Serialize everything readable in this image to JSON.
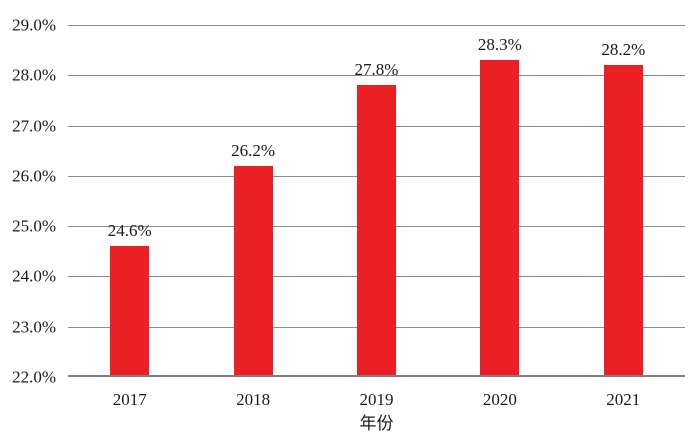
{
  "chart_data": {
    "type": "bar",
    "categories": [
      "2017",
      "2018",
      "2019",
      "2020",
      "2021"
    ],
    "values": [
      24.6,
      26.2,
      27.8,
      28.3,
      28.2
    ],
    "data_labels": [
      "24.6%",
      "26.2%",
      "27.8%",
      "28.3%",
      "28.2%"
    ],
    "title": "",
    "xlabel": "年份",
    "ylabel": "",
    "ylim": [
      22.0,
      29.0
    ],
    "ytick_step": 1.0,
    "ytick_labels": [
      "22.0%",
      "23.0%",
      "24.0%",
      "25.0%",
      "26.0%",
      "27.0%",
      "28.0%",
      "29.0%"
    ],
    "grid": true,
    "legend": false,
    "bar_color": "#EC2024",
    "gridline_color": "#8C8C8C",
    "axis_line_color": "#7F7F7F",
    "text_color": "#1A1A1A"
  }
}
